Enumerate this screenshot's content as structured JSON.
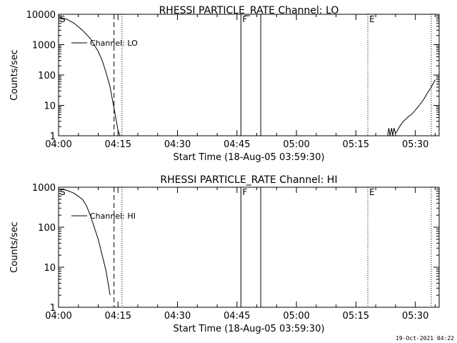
{
  "footer": {
    "timestamp": "19-Oct-2021 04:22"
  },
  "chart_data": [
    {
      "type": "line",
      "title": "RHESSI PARTICLE_RATE Channel: LO",
      "xlabel": "Start Time (18-Aug-05 03:59:30)",
      "ylabel": "Counts/sec",
      "y_scale": "log",
      "ylim": [
        1,
        10000
      ],
      "xlim": [
        "04:00",
        "05:36"
      ],
      "x_ticks": [
        "04:00",
        "04:15",
        "04:30",
        "04:45",
        "05:00",
        "05:15",
        "05:30"
      ],
      "y_ticks": [
        "1",
        "10",
        "100",
        "1000",
        "10000"
      ],
      "legend": {
        "placement": "top-left",
        "entries": [
          "Channel: LO"
        ]
      },
      "markers": [
        {
          "label": "S",
          "time": "04:00",
          "style": "none"
        },
        {
          "label": "",
          "time": "04:14",
          "style": "dashed"
        },
        {
          "label": "",
          "time": "04:16",
          "style": "dotted"
        },
        {
          "label": "F",
          "time": "04:46",
          "style": "solid"
        },
        {
          "label": "",
          "time": "04:51",
          "style": "solid"
        },
        {
          "label": "E",
          "time": "05:18",
          "style": "dotted"
        },
        {
          "label": "",
          "time": "05:34",
          "style": "dotted"
        }
      ],
      "series": [
        {
          "name": "Channel: LO",
          "segments": [
            [
              [
                "04:00",
                8000
              ],
              [
                "04:02",
                7000
              ],
              [
                "04:04",
                5000
              ],
              [
                "04:06",
                3000
              ],
              [
                "04:08",
                1600
              ],
              [
                "04:10",
                600
              ],
              [
                "04:11",
                300
              ],
              [
                "04:12",
                120
              ],
              [
                "04:13",
                40
              ],
              [
                "04:14",
                8
              ],
              [
                "04:15",
                1.5
              ],
              [
                "04:15.5",
                1
              ]
            ],
            [
              [
                "05:23",
                1
              ],
              [
                "05:23.3",
                1.8
              ],
              [
                "05:23.6",
                1
              ],
              [
                "05:24",
                1.8
              ],
              [
                "05:24.3",
                1
              ],
              [
                "05:24.6",
                1.8
              ],
              [
                "05:25",
                1.2
              ],
              [
                "05:25.5",
                1.5
              ],
              [
                "05:26",
                2
              ],
              [
                "05:27",
                3
              ],
              [
                "05:28",
                4
              ],
              [
                "05:29",
                5
              ],
              [
                "05:30",
                7
              ],
              [
                "05:31",
                10
              ],
              [
                "05:32",
                15
              ],
              [
                "05:33",
                25
              ],
              [
                "05:34",
                40
              ],
              [
                "05:35",
                70
              ]
            ]
          ]
        }
      ]
    },
    {
      "type": "line",
      "title": "RHESSI PARTICLE_RATE Channel: HI",
      "xlabel": "Start Time (18-Aug-05 03:59:30)",
      "ylabel": "Counts/sec",
      "y_scale": "log",
      "ylim": [
        1,
        1000
      ],
      "xlim": [
        "04:00",
        "05:36"
      ],
      "x_ticks": [
        "04:00",
        "04:15",
        "04:30",
        "04:45",
        "05:00",
        "05:15",
        "05:30"
      ],
      "y_ticks": [
        "1",
        "10",
        "100",
        "1000"
      ],
      "legend": {
        "placement": "top-left",
        "entries": [
          "Channel: HI"
        ]
      },
      "markers": [
        {
          "label": "S",
          "time": "04:00",
          "style": "none"
        },
        {
          "label": "",
          "time": "04:14",
          "style": "dashed"
        },
        {
          "label": "",
          "time": "04:16",
          "style": "dotted"
        },
        {
          "label": "F",
          "time": "04:46",
          "style": "solid"
        },
        {
          "label": "",
          "time": "04:51",
          "style": "solid"
        },
        {
          "label": "E",
          "time": "05:18",
          "style": "dotted"
        },
        {
          "label": "",
          "time": "05:34",
          "style": "dotted"
        }
      ],
      "series": [
        {
          "name": "Channel: HI",
          "segments": [
            [
              [
                "04:00",
                900
              ],
              [
                "04:02",
                850
              ],
              [
                "04:04",
                700
              ],
              [
                "04:06",
                500
              ],
              [
                "04:07",
                350
              ],
              [
                "04:08",
                200
              ],
              [
                "04:09",
                100
              ],
              [
                "04:10",
                50
              ],
              [
                "04:11",
                20
              ],
              [
                "04:12",
                8
              ],
              [
                "04:12.5",
                4
              ],
              [
                "04:13",
                2
              ]
            ]
          ]
        }
      ]
    }
  ]
}
